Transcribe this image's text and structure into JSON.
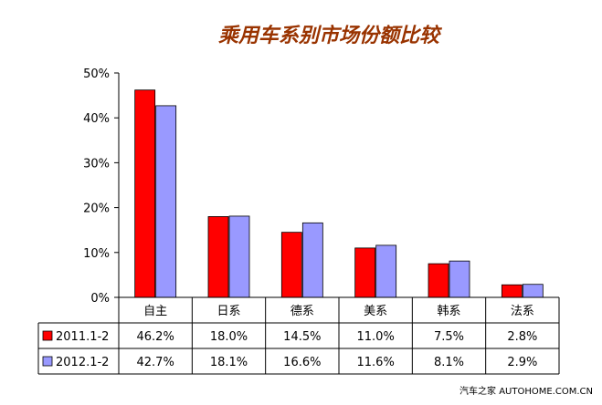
{
  "chart_data": {
    "type": "bar",
    "title": "乘用车系别市场份额比较",
    "categories": [
      "自主",
      "日系",
      "德系",
      "美系",
      "韩系",
      "法系"
    ],
    "series": [
      {
        "name": "2011.1-2",
        "values": [
          46.2,
          18.0,
          14.5,
          11.0,
          7.5,
          2.8
        ],
        "color": "#ff0000"
      },
      {
        "name": "2012.1-2",
        "values": [
          42.7,
          18.1,
          16.6,
          11.6,
          8.1,
          2.9
        ],
        "color": "#9999ff"
      }
    ],
    "table_labels": [
      [
        "46.2%",
        "18.0%",
        "14.5%",
        "11.0%",
        "7.5%",
        "2.8%"
      ],
      [
        "42.7%",
        "18.1%",
        "16.6%",
        "11.6%",
        "8.1%",
        "2.9%"
      ]
    ],
    "yticks": [
      "0%",
      "10%",
      "20%",
      "30%",
      "40%",
      "50%"
    ],
    "ylim": [
      0,
      50
    ],
    "xlabel": "",
    "ylabel": "",
    "grid": false,
    "legend": "data-table-left",
    "title_color": "#993300"
  },
  "watermark": "汽车之家  AUTOHOME.COM.CN"
}
